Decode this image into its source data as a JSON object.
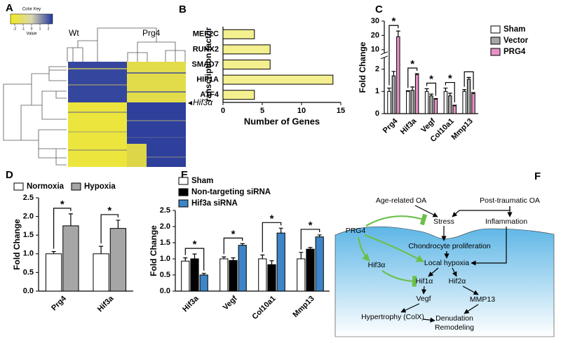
{
  "heatmap": {
    "panel": "A",
    "color_key_title": "Color Key",
    "color_key_label": "Value",
    "color_key_lim": [
      -2.5,
      2.5
    ],
    "color_key_ticks": [
      -2,
      -1,
      0,
      1,
      2
    ],
    "groups": [
      "Wt",
      "Prg4"
    ],
    "annotation": "Hif3α"
  },
  "chart_data": [
    {
      "panel": "B",
      "type": "bar",
      "orientation": "horizontal",
      "ylabel": "ranscription factor",
      "xlabel": "Number of Genes",
      "categories": [
        "MEF2C",
        "RUNX2",
        "SMAD7",
        "HIF1A",
        "ATF4"
      ],
      "values": [
        4,
        6,
        6,
        14,
        4
      ],
      "color": "#f4ef8f",
      "xlim": [
        0,
        15
      ],
      "xticks": [
        0,
        5,
        10,
        15
      ]
    },
    {
      "panel": "C",
      "type": "bar",
      "ylabel": "Fold Change",
      "categories": [
        "Prg4",
        "Hif3a",
        "Vegf",
        "Col10a1",
        "Mmp13"
      ],
      "series": [
        {
          "name": "Sham",
          "color": "#ffffff",
          "values": [
            1,
            1,
            1,
            1,
            1
          ],
          "errors": [
            0.15,
            0.03,
            0.12,
            0.15,
            0.08
          ]
        },
        {
          "name": "Vector",
          "color": "#a6a6a6",
          "values": [
            1.7,
            1.05,
            0.8,
            0.8,
            1.55
          ],
          "errors": [
            0.2,
            0.15,
            0.08,
            0.12,
            0.08
          ]
        },
        {
          "name": "PRG4",
          "color": "#e991c6",
          "values": [
            19,
            1.75,
            0.65,
            0.35,
            0.9
          ],
          "errors": [
            4,
            0.05,
            0.03,
            0.03,
            0.05
          ]
        }
      ],
      "ylim": [
        0,
        30
      ],
      "ybreak": [
        2.5,
        8
      ],
      "yticks": [
        0,
        1,
        2,
        10,
        20,
        30
      ],
      "legend": "right",
      "significance_labels": [
        "*",
        "*",
        "*",
        "*",
        null
      ]
    },
    {
      "panel": "D",
      "type": "bar",
      "ylabel": "Fold Change",
      "categories": [
        "Prg4",
        "Hif3a"
      ],
      "series": [
        {
          "name": "Normoxia",
          "color": "#ffffff",
          "values": [
            1.0,
            1.0
          ],
          "errors": [
            0.06,
            0.2
          ]
        },
        {
          "name": "Hypoxia",
          "color": "#a6a6a6",
          "values": [
            1.75,
            1.68
          ],
          "errors": [
            0.32,
            0.22
          ]
        }
      ],
      "ylim": [
        0,
        2.5
      ],
      "yticks": [
        {
          "value": 0,
          "label": "0.0"
        },
        {
          "value": 0.5,
          "label": "0.5"
        },
        {
          "value": 1,
          "label": "1.0"
        },
        {
          "value": 1.5,
          "label": "1.5"
        },
        {
          "value": 2,
          "label": "2.0"
        },
        {
          "value": 2.5,
          "label": "2.5"
        }
      ],
      "legend": "top",
      "significance_labels": [
        "*",
        "*"
      ]
    },
    {
      "panel": "E",
      "type": "bar",
      "ylabel": "Fold Change",
      "categories": [
        "Hif3a",
        "Vegf",
        "Col10a1",
        "Mmp13"
      ],
      "series": [
        {
          "name": "Sham",
          "color": "#ffffff",
          "values": [
            0.93,
            1.0,
            1.0,
            1.0
          ],
          "errors": [
            0.1,
            0.06,
            0.12,
            0.2
          ]
        },
        {
          "name": "Non-targeting siRNA",
          "color": "#000000",
          "values": [
            1.0,
            0.95,
            0.82,
            1.3
          ],
          "errors": [
            0.15,
            0.08,
            0.12,
            0.05
          ]
        },
        {
          "name": "Hif3a siRNA",
          "color": "#3d85c6",
          "values": [
            0.5,
            1.42,
            1.8,
            1.68
          ],
          "errors": [
            0.05,
            0.05,
            0.15,
            0.06
          ]
        }
      ],
      "ylim": [
        0,
        2.5
      ],
      "yticks": [
        {
          "value": 0,
          "label": "0.0"
        },
        {
          "value": 0.5,
          "label": "0.5"
        },
        {
          "value": 1,
          "label": "1.0"
        },
        {
          "value": 1.5,
          "label": "1.5"
        },
        {
          "value": 2,
          "label": "2.0"
        },
        {
          "value": 2.5,
          "label": "2.5"
        }
      ],
      "legend": "top-left",
      "significance_labels": [
        "*",
        "*",
        "*",
        "*"
      ]
    }
  ],
  "diagram": {
    "panel": "F",
    "nodes": [
      "Age-related OA",
      "Post-traumatic OA",
      "Stress",
      "Inflammation",
      "PRG4",
      "Chondrocyte proliferation",
      "Local hypoxia",
      "Hif3α",
      "Hif1α",
      "Hif2α",
      "Vegf",
      "MMP13",
      "Hypertrophy (ColX)",
      "Denudation",
      "Remodeling"
    ]
  }
}
